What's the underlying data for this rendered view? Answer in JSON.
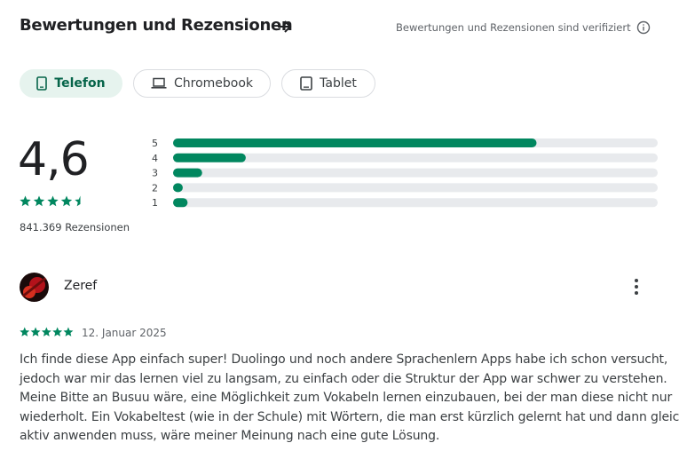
{
  "header": {
    "title": "Bewertungen und Rezensionen",
    "verified_note": "Bewertungen und Rezensionen sind verifiziert"
  },
  "tabs": [
    {
      "label": "Telefon",
      "selected": true
    },
    {
      "label": "Chromebook",
      "selected": false
    },
    {
      "label": "Tablet",
      "selected": false
    }
  ],
  "summary": {
    "rating": "4,6",
    "stars": 4.5,
    "review_count": "841.369 Rezensionen",
    "distribution": {
      "labels": [
        "5",
        "4",
        "3",
        "2",
        "1"
      ],
      "values": [
        75,
        15,
        6,
        2,
        3
      ],
      "max": 100,
      "color": "#01875f",
      "track_color": "#e8eaed"
    }
  },
  "review": {
    "author": "Zeref",
    "stars": 5,
    "date": "12. Januar 2025",
    "text_lines": [
      "Ich finde diese App einfach super! Duolingo und noch andere Sprachenlern Apps habe ich schon versucht,",
      "jedoch war mir das lernen viel zu langsam, zu einfach oder die Struktur der App war schwer zu verstehen.",
      "Meine Bitte an Busuu wäre, eine Möglichkeit zum Vokabeln lernen einzubauen, bei der man diese nicht nur",
      "wiederholt. Ein Vokabeltest (wie in der Schule) mit Wörtern, die man erst kürzlich gelernt hat und dann gleich",
      "aktiv anwenden muss, wäre meiner Meinung nach eine gute Lösung."
    ]
  }
}
